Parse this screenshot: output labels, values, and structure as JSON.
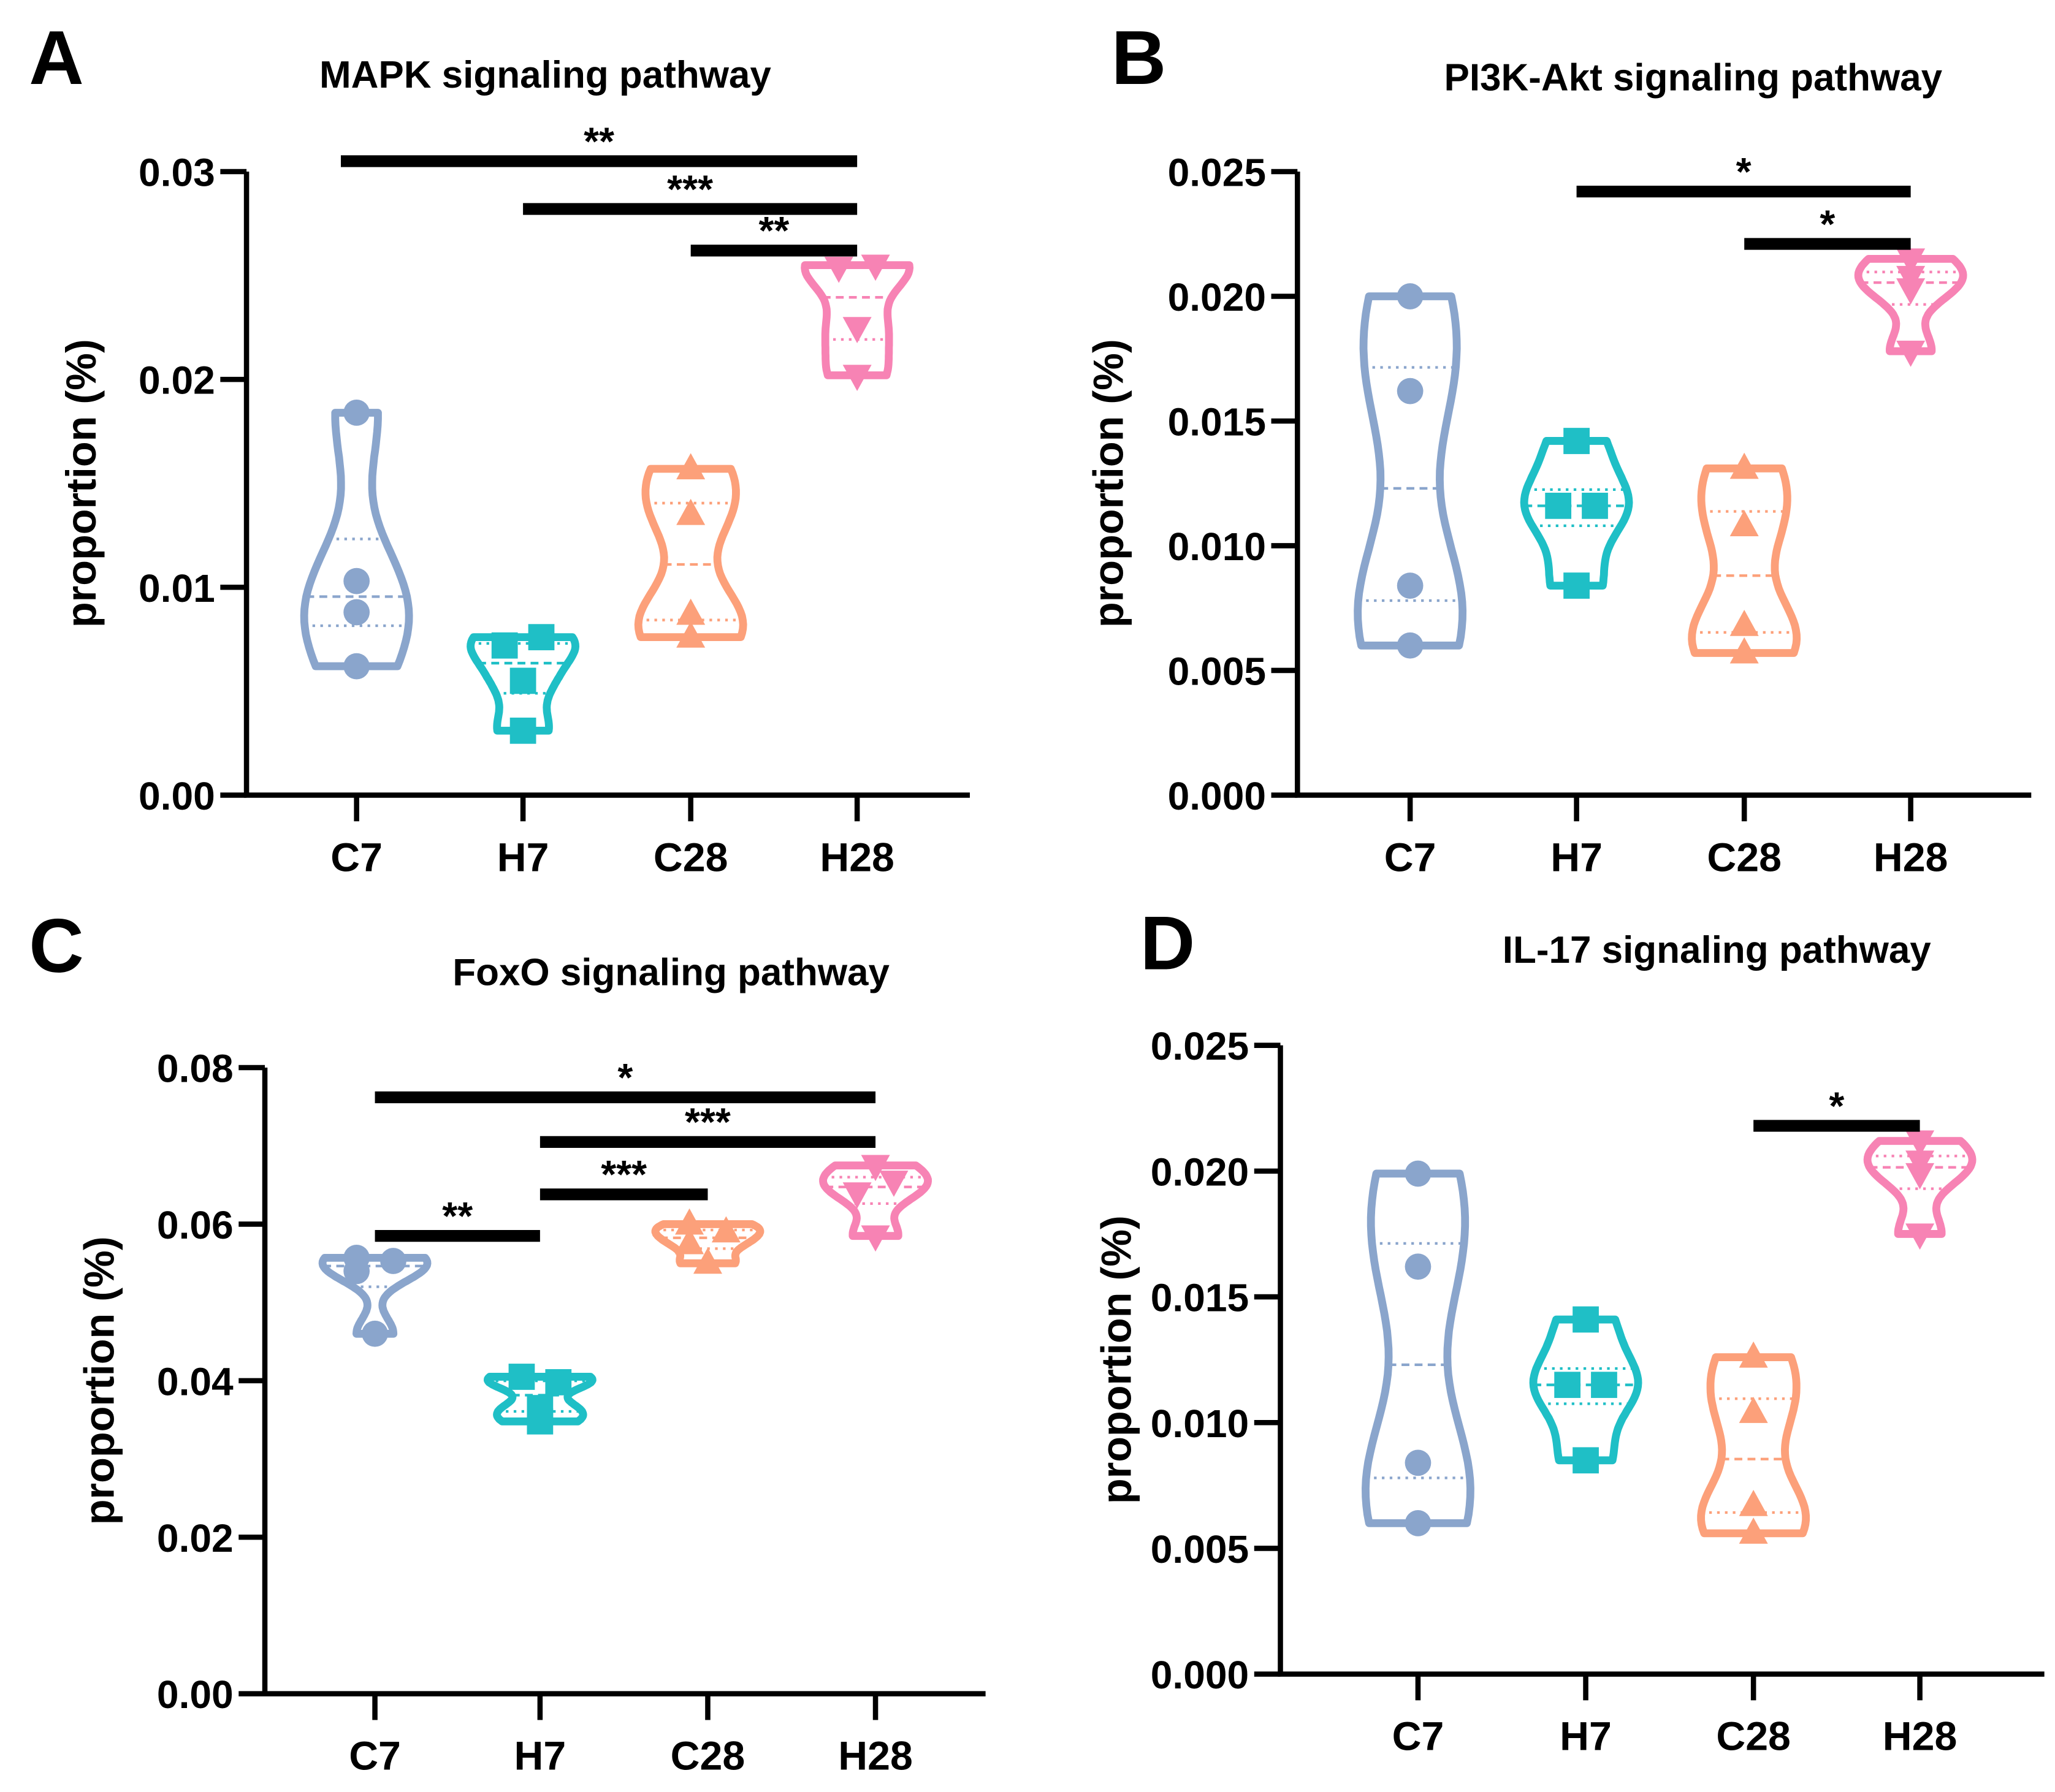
{
  "chart_data": [
    {
      "type": "violin",
      "panel_letter": "A",
      "title": "MAPK signaling pathway",
      "ylabel": "proportion (%)",
      "xlabel": "",
      "categories": [
        "C7",
        "H7",
        "C28",
        "H28"
      ],
      "ylim": [
        0,
        0.03
      ],
      "yticks": [
        "0.00",
        "0.01",
        "0.02",
        "0.03"
      ],
      "ytick_values": [
        0,
        0.01,
        0.02,
        0.03
      ],
      "series": [
        {
          "name": "C7",
          "values": [
            0.0184,
            0.0103,
            0.0088,
            0.0062
          ]
        },
        {
          "name": "H7",
          "values": [
            0.0072,
            0.0076,
            0.0055,
            0.0031
          ]
        },
        {
          "name": "C28",
          "values": [
            0.0157,
            0.0135,
            0.0087,
            0.0076
          ]
        },
        {
          "name": "H28",
          "values": [
            0.0254,
            0.0255,
            0.0225,
            0.0202
          ]
        }
      ],
      "significance": [
        {
          "from": "C7",
          "to": "H28",
          "label": "**",
          "y": 0.0305
        },
        {
          "from": "H7",
          "to": "H28",
          "label": "***",
          "y": 0.0282
        },
        {
          "from": "C28",
          "to": "H28",
          "label": "**",
          "y": 0.0262
        }
      ]
    },
    {
      "type": "violin",
      "panel_letter": "B",
      "title": "PI3K-Akt signaling pathway",
      "ylabel": "proportion (%)",
      "xlabel": "",
      "categories": [
        "C7",
        "H7",
        "C28",
        "H28"
      ],
      "ylim": [
        0,
        0.025
      ],
      "yticks": [
        "0.000",
        "0.005",
        "0.010",
        "0.015",
        "0.020",
        "0.025"
      ],
      "ytick_values": [
        0,
        0.005,
        0.01,
        0.015,
        0.02,
        0.025
      ],
      "series": [
        {
          "name": "C7",
          "values": [
            0.02,
            0.0162,
            0.0084,
            0.006
          ]
        },
        {
          "name": "H7",
          "values": [
            0.0142,
            0.0116,
            0.0116,
            0.0084
          ]
        },
        {
          "name": "C28",
          "values": [
            0.0131,
            0.0108,
            0.0068,
            0.0057
          ]
        },
        {
          "name": "H28",
          "values": [
            0.0215,
            0.0208,
            0.0203,
            0.0178
          ]
        }
      ],
      "significance": [
        {
          "from": "H7",
          "to": "H28",
          "label": "*",
          "y": 0.0242
        },
        {
          "from": "C28",
          "to": "H28",
          "label": "*",
          "y": 0.0221
        }
      ]
    },
    {
      "type": "violin",
      "panel_letter": "C",
      "title": "FoxO signaling pathway",
      "ylabel": "proportion (%)",
      "xlabel": "",
      "categories": [
        "C7",
        "H7",
        "C28",
        "H28"
      ],
      "ylim": [
        0,
        0.08
      ],
      "yticks": [
        "0.00",
        "0.02",
        "0.04",
        "0.06",
        "0.08"
      ],
      "ytick_values": [
        0,
        0.02,
        0.04,
        0.06,
        0.08
      ],
      "series": [
        {
          "name": "C7",
          "values": [
            0.0557,
            0.0553,
            0.054,
            0.046
          ]
        },
        {
          "name": "H7",
          "values": [
            0.0405,
            0.0398,
            0.0365,
            0.0348
          ]
        },
        {
          "name": "C28",
          "values": [
            0.06,
            0.059,
            0.0575,
            0.055
          ]
        },
        {
          "name": "H28",
          "values": [
            0.0675,
            0.0655,
            0.064,
            0.0585
          ]
        }
      ],
      "significance": [
        {
          "from": "C7",
          "to": "H28",
          "label": "*",
          "y": 0.0762
        },
        {
          "from": "H7",
          "to": "H28",
          "label": "***",
          "y": 0.0705
        },
        {
          "from": "H7",
          "to": "C28",
          "label": "***",
          "y": 0.0638
        },
        {
          "from": "C7",
          "to": "H7",
          "label": "**",
          "y": 0.0585
        }
      ]
    },
    {
      "type": "violin",
      "panel_letter": "D",
      "title": "IL-17 signaling pathway",
      "ylabel": "proportion (%)",
      "xlabel": "",
      "categories": [
        "C7",
        "H7",
        "C28",
        "H28"
      ],
      "ylim": [
        0,
        0.025
      ],
      "yticks": [
        "0.000",
        "0.005",
        "0.010",
        "0.015",
        "0.020",
        "0.025"
      ],
      "ytick_values": [
        0,
        0.005,
        0.01,
        0.015,
        0.02,
        0.025
      ],
      "series": [
        {
          "name": "C7",
          "values": [
            0.0199,
            0.0162,
            0.0084,
            0.006
          ]
        },
        {
          "name": "H7",
          "values": [
            0.0141,
            0.0115,
            0.0115,
            0.0085
          ]
        },
        {
          "name": "C28",
          "values": [
            0.0126,
            0.0104,
            0.0067,
            0.0056
          ]
        },
        {
          "name": "H28",
          "values": [
            0.0212,
            0.0204,
            0.0199,
            0.0175
          ]
        }
      ],
      "significance": [
        {
          "from": "C28",
          "to": "H28",
          "label": "*",
          "y": 0.0218
        }
      ]
    }
  ],
  "colors": {
    "C7": "#8aa5cc",
    "H7": "#1fbfc6",
    "C28": "#fca07a",
    "H28": "#f783b4"
  },
  "markers": {
    "C7": "circle",
    "H7": "square",
    "C28": "triangle-up",
    "H28": "triangle-down"
  }
}
